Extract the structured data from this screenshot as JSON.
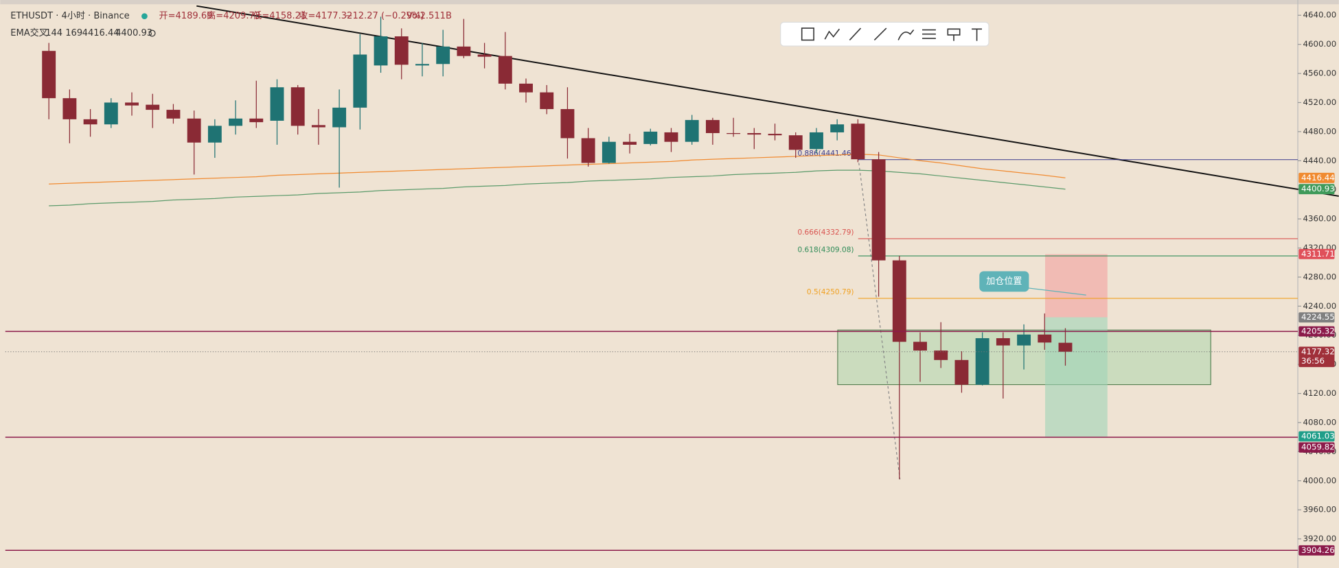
{
  "chart_data": {
    "type": "candlestick",
    "symbol": "ETHUSDT · 4小时 · Binance",
    "ohlc_labels": [
      "开=4189.69",
      "高=4209.73",
      "低=4158.21",
      "收=4177.32"
    ],
    "change": "−12.27 (−0.29%)",
    "volume": "Vol2.511B",
    "indicator": {
      "name": "EMA交叉",
      "params": "144 169"
    },
    "up_color": "#1f7373",
    "down_color": "#8a2a35",
    "ylim": [
      3880,
      4661
    ],
    "yticks": [
      {
        "value": 3920,
        "label": "3920.00"
      },
      {
        "value": 3960,
        "label": "3960.00"
      },
      {
        "value": 4000,
        "label": "4000.00"
      },
      {
        "value": 4040,
        "label": "4040.00"
      },
      {
        "value": 4080,
        "label": "4080.00"
      },
      {
        "value": 4120,
        "label": "4120.00"
      },
      {
        "value": 4160,
        "label": "4160.00"
      },
      {
        "value": 4200,
        "label": "4200.00"
      },
      {
        "value": 4240,
        "label": "4240.00"
      },
      {
        "value": 4280,
        "label": "4280.00"
      },
      {
        "value": 4320,
        "label": "4320.00"
      },
      {
        "value": 4360,
        "label": "4360.00"
      },
      {
        "value": 4400,
        "label": "4400.00"
      },
      {
        "value": 4440,
        "label": "4440.00"
      },
      {
        "value": 4480,
        "label": "4480.00"
      },
      {
        "value": 4520,
        "label": "4520.00"
      },
      {
        "value": 4560,
        "label": "4560.00"
      },
      {
        "value": 4600,
        "label": "4600.00"
      },
      {
        "value": 4640,
        "label": "4640.00"
      }
    ],
    "open": [
      4591,
      4526,
      4497,
      4490,
      4520,
      4517,
      4510,
      4498,
      4465,
      4488,
      4498,
      4495,
      4541,
      4489,
      4486,
      4513,
      4571,
      4611,
      4571,
      4573,
      4597,
      4586,
      4584,
      4546,
      4534,
      4511,
      4471,
      4437,
      4466,
      4463,
      4479,
      4466,
      4496,
      4478,
      4478,
      4477,
      4475,
      4456,
      4479,
      4491,
      4442,
      4303,
      4191,
      4179,
      4166,
      4132,
      4196,
      4186,
      4201,
      4189.69
    ],
    "high": [
      4602,
      4538,
      4511,
      4526,
      4534,
      4532,
      4518,
      4509,
      4497,
      4523,
      4550,
      4552,
      4544,
      4511,
      4538,
      4614,
      4638,
      4622,
      4602,
      4620,
      4635,
      4602,
      4617,
      4553,
      4544,
      4541,
      4485,
      4473,
      4477,
      4484,
      4485,
      4503,
      4499,
      4499,
      4485,
      4491,
      4479,
      4485,
      4497,
      4497,
      4452,
      4309,
      4204,
      4218,
      4178,
      4204,
      4204,
      4215,
      4230,
      4209.73
    ],
    "low": [
      4497,
      4464,
      4473,
      4485,
      4502,
      4485,
      4491,
      4421,
      4444,
      4476,
      4485,
      4462,
      4476,
      4462,
      4403,
      4483,
      4561,
      4552,
      4556,
      4556,
      4581,
      4567,
      4538,
      4520,
      4504,
      4443,
      4432,
      4436,
      4450,
      4461,
      4452,
      4462,
      4462,
      4473,
      4456,
      4468,
      4444,
      4450,
      4468,
      4438,
      4253,
      4002,
      4136,
      4155,
      4121,
      4131,
      4113,
      4153,
      4180,
      4158.21
    ],
    "close": [
      4526,
      4497,
      4490,
      4520,
      4516,
      4510,
      4498,
      4465,
      4488,
      4498,
      4493,
      4541,
      4488,
      4486,
      4513,
      4586,
      4611,
      4572,
      4573,
      4597,
      4584,
      4583,
      4546,
      4534,
      4511,
      4471,
      4437,
      4466,
      4462,
      4480,
      4466,
      4496,
      4478,
      4477,
      4476,
      4475,
      4455,
      4479,
      4490,
      4442,
      4303,
      4191,
      4179,
      4166,
      4132,
      4196,
      4186,
      4201,
      4190,
      4177.32
    ],
    "series": [
      {
        "name": "4416.44",
        "color": "#f08a30",
        "values": [
          4408,
          4409,
          4410,
          4411,
          4412,
          4413,
          4414,
          4415,
          4416,
          4417,
          4418,
          4420,
          4421,
          4422,
          4423,
          4424,
          4425,
          4426,
          4427,
          4428,
          4429,
          4430,
          4431,
          4432,
          4433,
          4434,
          4435,
          4436,
          4437,
          4438,
          4439,
          4441,
          4442,
          4443,
          4444,
          4445,
          4446,
          4447,
          4448,
          4449,
          4448,
          4444,
          4440,
          4437,
          4433,
          4429,
          4426,
          4423,
          4420,
          4416.44
        ]
      },
      {
        "name": "4400.93",
        "color": "#5a9a6a",
        "values": [
          4378,
          4379,
          4381,
          4382,
          4383,
          4384,
          4386,
          4387,
          4388,
          4390,
          4391,
          4392,
          4393,
          4395,
          4396,
          4397,
          4399,
          4400,
          4401,
          4402,
          4404,
          4405,
          4406,
          4408,
          4409,
          4410,
          4412,
          4413,
          4414,
          4415,
          4417,
          4418,
          4419,
          4421,
          4422,
          4423,
          4424,
          4426,
          4427,
          4427,
          4426,
          4424,
          4422,
          4419,
          4416,
          4413,
          4410,
          4407,
          4404,
          4400.93
        ]
      }
    ],
    "fib_levels": [
      {
        "value": 4441.46,
        "label": "0.886(4441.46)",
        "color": "#3a3a8c"
      },
      {
        "value": 4332.79,
        "label": "0.666(4332.79)",
        "color": "#d9534f"
      },
      {
        "value": 4309.08,
        "label": "0.618(4309.08)",
        "color": "#2e8b57"
      },
      {
        "value": 4250.79,
        "label": "0.5(4250.79)",
        "color": "#f0a020"
      }
    ],
    "price_tags": [
      {
        "value": 4416.44,
        "color": "#f08a30"
      },
      {
        "value": 4400.93,
        "color": "#3f9a5a"
      },
      {
        "value": 4311.71,
        "color": "#e0505a"
      },
      {
        "value": 4224.55,
        "color": "#808080"
      },
      {
        "value": 4205.32,
        "color": "#8b1a4a",
        "line": "solid"
      },
      {
        "value": 4177.32,
        "color": "#a0303a",
        "line": "dotted"
      },
      {
        "value": 4061.03,
        "color": "#1f9e89"
      },
      {
        "value": 4059.82,
        "color": "#8b1a4a",
        "line": "solid"
      },
      {
        "value": 3904.26,
        "color": "#8b1a4a",
        "line": "solid"
      }
    ],
    "countdown": "36:56",
    "annotation": "加仓位置"
  }
}
